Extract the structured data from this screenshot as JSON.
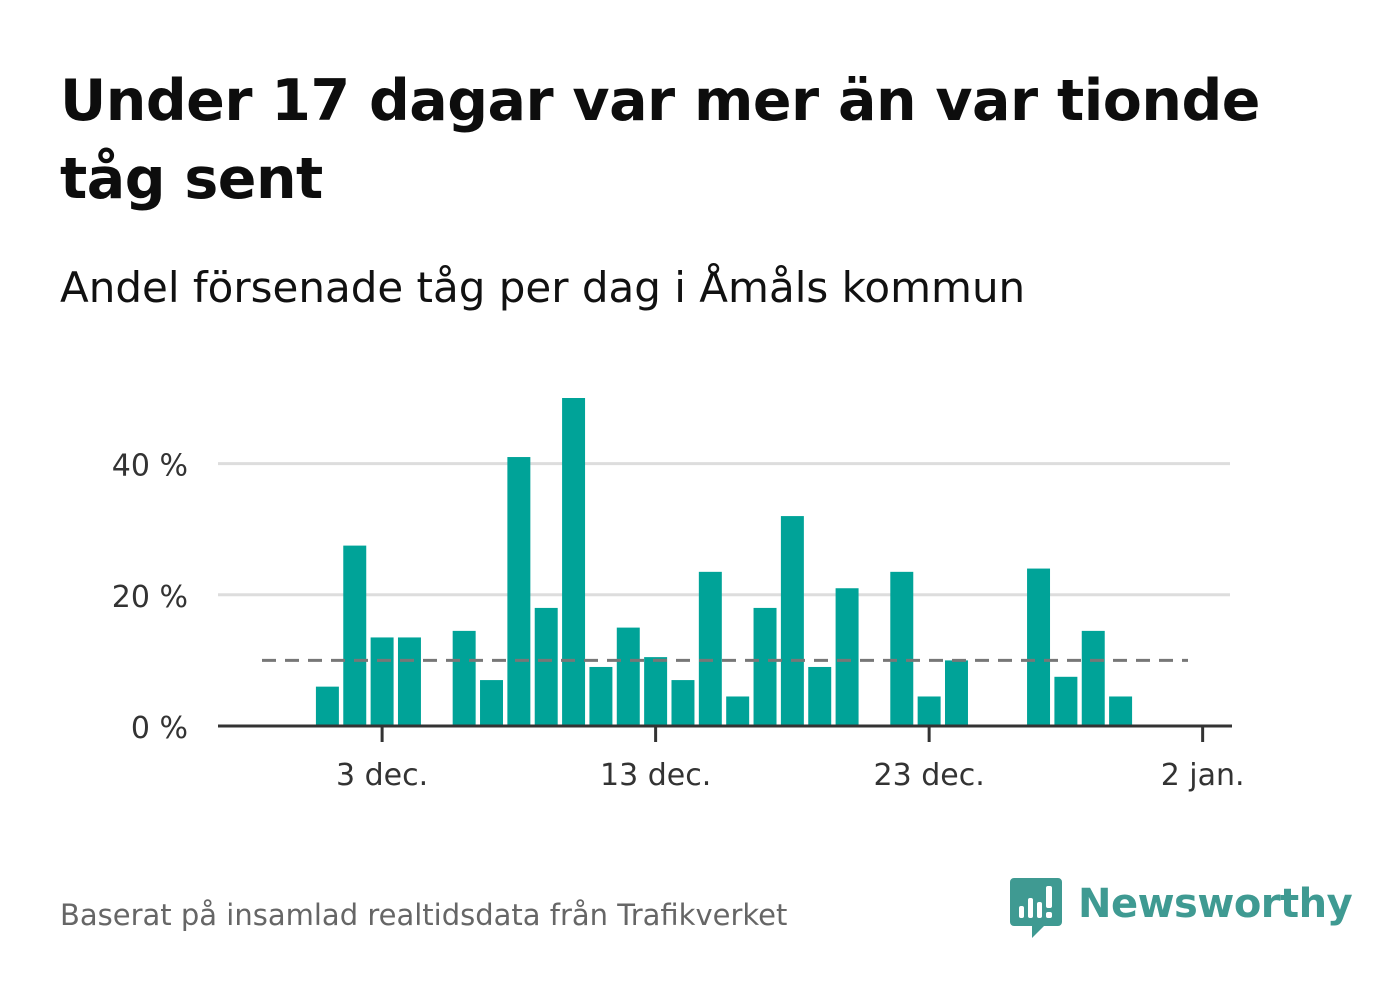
{
  "header": {
    "title": "Under 17 dagar var mer än var tionde tåg sent",
    "subtitle": "Andel försenade tåg per dag i Åmåls kommun"
  },
  "footer": {
    "source": "Baserat på insamlad realtidsdata från Trafikverket",
    "brand": "Newsworthy"
  },
  "colors": {
    "bar": "#00a398",
    "reference_line": "#777777",
    "grid": "#dddddd",
    "axis": "#333333",
    "brand": "#3f9a92"
  },
  "chart_data": {
    "type": "bar",
    "x_start_day": 1,
    "x_range_days": [
      -3,
      34
    ],
    "ylim": [
      0,
      50
    ],
    "y_unit": "%",
    "y_ticks": [
      {
        "value": 0,
        "label": "0 %"
      },
      {
        "value": 20,
        "label": "20 %"
      },
      {
        "value": 40,
        "label": "40 %"
      }
    ],
    "x_ticks": [
      {
        "day": 3,
        "label": "3 dec."
      },
      {
        "day": 13,
        "label": "13 dec."
      },
      {
        "day": 23,
        "label": "23 dec."
      },
      {
        "day": 33,
        "label": "2 jan."
      }
    ],
    "values": [
      6,
      27.5,
      13.5,
      13.5,
      0,
      14.5,
      7,
      41,
      18,
      50,
      9,
      15,
      10.5,
      7,
      23.5,
      4.5,
      18,
      32,
      9,
      21,
      0,
      23.5,
      4.5,
      10,
      0,
      0,
      24,
      7.5,
      14.5,
      4.5
    ],
    "reference_value": 10,
    "grid": true,
    "legend": "none"
  }
}
